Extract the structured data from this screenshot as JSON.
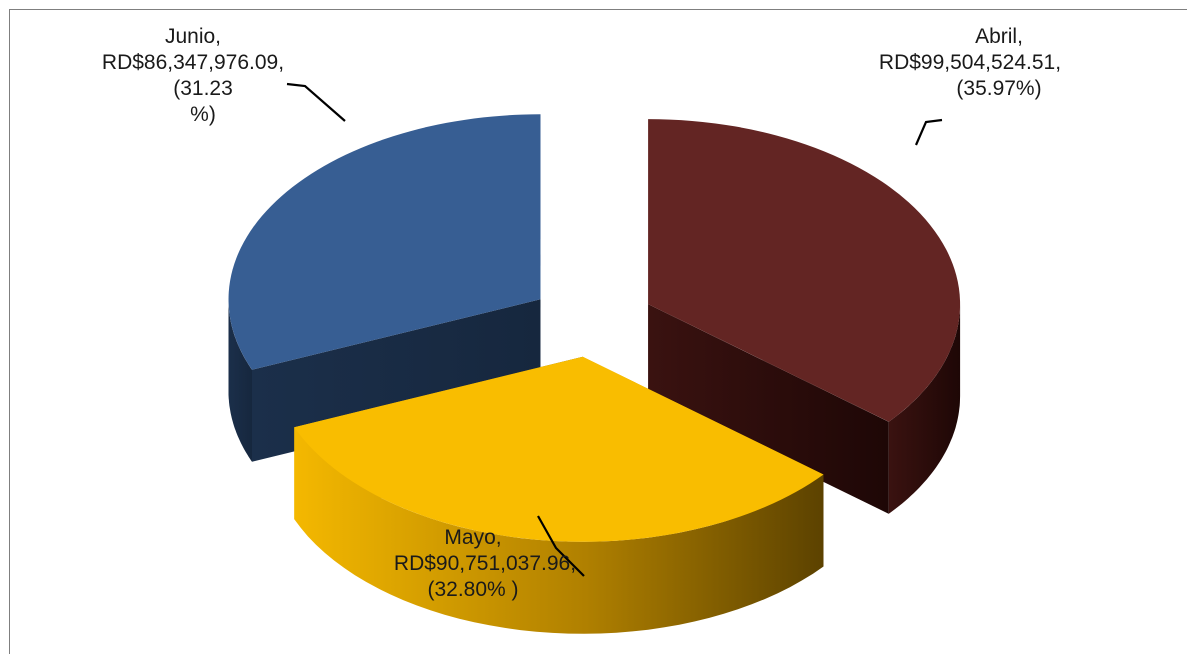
{
  "chart_data": {
    "type": "pie",
    "title": "",
    "slices": [
      {
        "label": "Abril",
        "value": 99504524.51,
        "value_text": "RD$99,504,524.51,",
        "percent": 35.97,
        "percent_text": "(35.97%)",
        "color": "#632523"
      },
      {
        "label": "Mayo",
        "value": 90751037.96,
        "value_text": "RD$90,751,037.96,",
        "percent": 32.8,
        "percent_text": "(32.80% )",
        "color": "#f9bd00"
      },
      {
        "label": "Junio",
        "value": 86347976.09,
        "value_text": "RD$86,347,976.09,",
        "percent": 31.23,
        "percent_text": "(31.23 %)",
        "color": "#375e93"
      }
    ]
  },
  "labels": {
    "abril": {
      "name": "Abril,",
      "value": "RD$99,504,524.51,",
      "pct": "(35.97%)"
    },
    "mayo": {
      "name": "Mayo,",
      "value": "RD$90,751,037.96,",
      "pct": "(32.80% )"
    },
    "junio": {
      "name": "Junio,",
      "value": "RD$86,347,976.09,",
      "pct1": "(31.23",
      "pct2": "%)"
    }
  }
}
